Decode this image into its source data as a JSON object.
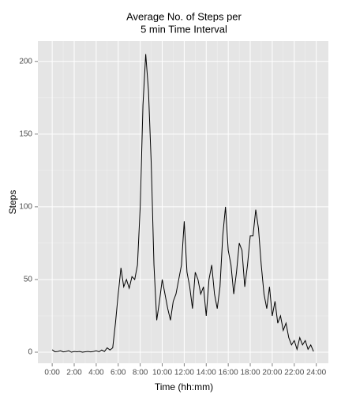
{
  "chart_data": {
    "type": "line",
    "title": [
      "Average No. of Steps per",
      "5 min Time Interval"
    ],
    "x_label": "Time (hh:mm)",
    "y_label": "Steps",
    "x": [
      0,
      0.25,
      0.5,
      0.75,
      1,
      1.25,
      1.5,
      1.75,
      2,
      2.25,
      2.5,
      2.75,
      3,
      3.25,
      3.5,
      3.75,
      4,
      4.25,
      4.5,
      4.75,
      5,
      5.25,
      5.5,
      5.75,
      6,
      6.25,
      6.5,
      6.75,
      7,
      7.25,
      7.5,
      7.75,
      8,
      8.25,
      8.5,
      8.75,
      9,
      9.25,
      9.5,
      9.75,
      10,
      10.25,
      10.5,
      10.75,
      11,
      11.25,
      11.5,
      11.75,
      12,
      12.25,
      12.5,
      12.75,
      13,
      13.25,
      13.5,
      13.75,
      14,
      14.25,
      14.5,
      14.75,
      15,
      15.25,
      15.5,
      15.75,
      16,
      16.25,
      16.5,
      16.75,
      17,
      17.25,
      17.5,
      17.75,
      18,
      18.25,
      18.5,
      18.75,
      19,
      19.25,
      19.5,
      19.75,
      20,
      20.25,
      20.5,
      20.75,
      21,
      21.25,
      21.5,
      21.75,
      22,
      22.25,
      22.5,
      22.75,
      23,
      23.25,
      23.5,
      23.75
    ],
    "series": [
      {
        "name": "Steps",
        "color": "#000000",
        "values": [
          1.7,
          0.3,
          0.5,
          1,
          0.2,
          0.5,
          1,
          0,
          0.5,
          0.3,
          0.5,
          0,
          0.3,
          0.5,
          0.2,
          0.5,
          1,
          0.3,
          1.5,
          0.5,
          3,
          1.5,
          3,
          20,
          40,
          58,
          45,
          50,
          44,
          52,
          50,
          60,
          100,
          170,
          205,
          180,
          130,
          60,
          22,
          35,
          50,
          40,
          30,
          22,
          35,
          40,
          50,
          60,
          90,
          55,
          45,
          30,
          55,
          50,
          40,
          45,
          25,
          50,
          60,
          40,
          30,
          45,
          80,
          100,
          70,
          60,
          40,
          55,
          75,
          70,
          45,
          60,
          80,
          80,
          98,
          85,
          60,
          40,
          30,
          45,
          25,
          35,
          20,
          25,
          15,
          20,
          10,
          5,
          8,
          2,
          10,
          5,
          8,
          2,
          5,
          0.5
        ]
      }
    ],
    "xlim": [
      -1.3,
      25.1
    ],
    "ylim": [
      -7.6,
      214
    ],
    "xticks": [
      {
        "value": 0,
        "label": "0:00"
      },
      {
        "value": 2,
        "label": "2:00"
      },
      {
        "value": 4,
        "label": "4:00"
      },
      {
        "value": 6,
        "label": "6:00"
      },
      {
        "value": 8,
        "label": "8:00"
      },
      {
        "value": 10,
        "label": "10:00"
      },
      {
        "value": 12,
        "label": "12:00"
      },
      {
        "value": 14,
        "label": "14:00"
      },
      {
        "value": 16,
        "label": "16:00"
      },
      {
        "value": 18,
        "label": "18:00"
      },
      {
        "value": 20,
        "label": "20:00"
      },
      {
        "value": 22,
        "label": "22:00"
      },
      {
        "value": 24,
        "label": "24:00"
      }
    ],
    "yticks": [
      0,
      50,
      100,
      150,
      200
    ],
    "grid": true
  }
}
